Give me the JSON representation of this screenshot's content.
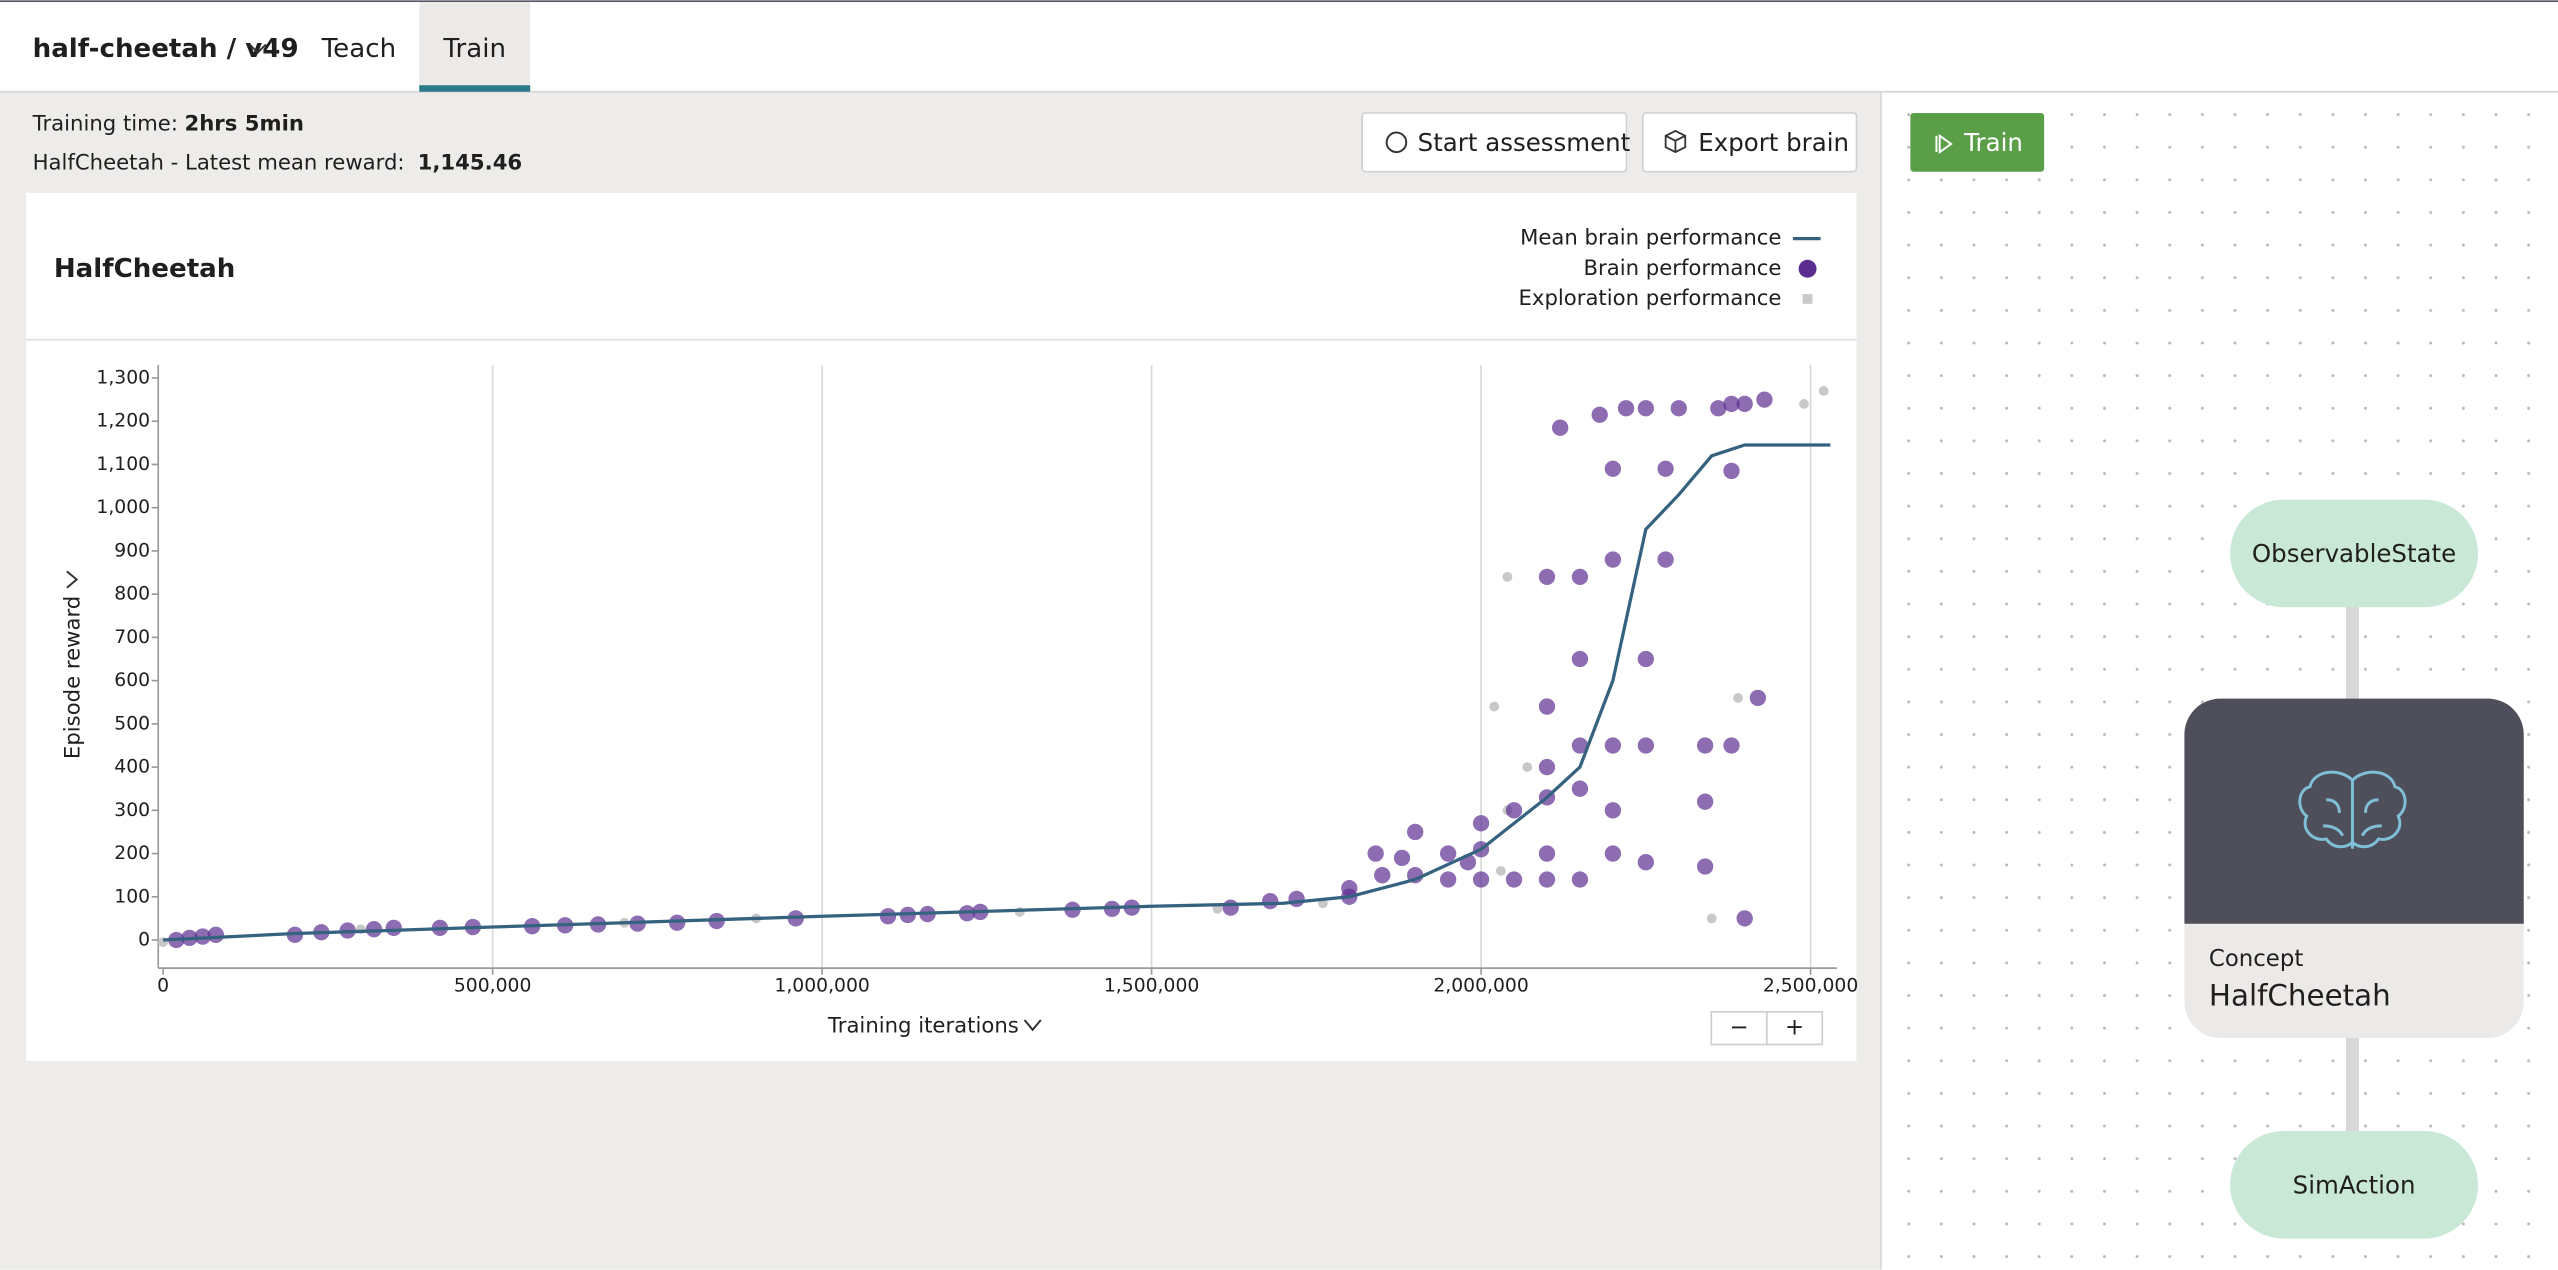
{
  "header": {
    "project": "half-cheetah / v49",
    "tabs": [
      {
        "label": "Teach"
      },
      {
        "label": "Train",
        "active": true
      }
    ]
  },
  "status": {
    "training_time_label": "Training time:",
    "training_time": "2hrs 5min",
    "reward_label": "HalfCheetah - Latest mean reward:",
    "reward": "1,145.46"
  },
  "buttons": [
    "Start assessment",
    "Export brain"
  ],
  "zoom_controls": [
    "−",
    "+"
  ],
  "chart_data": {
    "type": "scatter",
    "title": "HalfCheetah",
    "xlabel": "Training iterations",
    "ylabel": "Episode reward",
    "xlim": [
      0,
      2540000
    ],
    "ylim": [
      -65,
      1330
    ],
    "xticks": [
      0,
      {
        "value": 500000,
        "label": "500,000"
      },
      {
        "value": 1000000,
        "label": "1,000,000"
      },
      {
        "value": 1500000,
        "label": "1,500,000"
      },
      {
        "value": 2000000,
        "label": "2,000,000"
      },
      {
        "value": 2500000,
        "label": "2,500,000"
      }
    ],
    "yticks": [
      0,
      100,
      200,
      300,
      400,
      500,
      600,
      700,
      800,
      900,
      {
        "value": 1000,
        "label": "1,000"
      },
      {
        "value": 1100,
        "label": "1,100"
      },
      {
        "value": 1200,
        "label": "1,200"
      },
      {
        "value": 1300,
        "label": "1,300"
      }
    ],
    "grid": true,
    "legend": "top-right",
    "series": [
      {
        "name": "Mean brain performance",
        "type": "line",
        "color": "#35627f",
        "x": [
          0,
          200000,
          500000,
          1000000,
          1500000,
          1700000,
          1800000,
          1900000,
          2000000,
          2100000,
          2150000,
          2200000,
          2250000,
          2300000,
          2350000,
          2400000,
          2530000
        ],
        "values": [
          0,
          15,
          30,
          55,
          78,
          85,
          100,
          140,
          210,
          330,
          400,
          600,
          950,
          1030,
          1120,
          1145,
          1145
        ]
      },
      {
        "name": "Brain performance",
        "type": "scatter",
        "color": "#5c2d91",
        "x": [
          20000,
          40000,
          60000,
          80000,
          200000,
          240000,
          280000,
          320000,
          350000,
          420000,
          470000,
          560000,
          610000,
          660000,
          720000,
          780000,
          840000,
          960000,
          1100000,
          1130000,
          1160000,
          1220000,
          1240000,
          1380000,
          1440000,
          1470000,
          1620000,
          1680000,
          1720000,
          1800000,
          1800000,
          1840000,
          1850000,
          1880000,
          1900000,
          1900000,
          1950000,
          1950000,
          1980000,
          2000000,
          2000000,
          2000000,
          2050000,
          2050000,
          2100000,
          2100000,
          2100000,
          2100000,
          2100000,
          2100000,
          2120000,
          2150000,
          2150000,
          2150000,
          2150000,
          2150000,
          2180000,
          2200000,
          2200000,
          2200000,
          2200000,
          2200000,
          2220000,
          2250000,
          2250000,
          2250000,
          2250000,
          2280000,
          2280000,
          2300000,
          2340000,
          2340000,
          2340000,
          2360000,
          2380000,
          2380000,
          2380000,
          2400000,
          2400000,
          2420000,
          2430000
        ],
        "values": [
          0,
          5,
          8,
          12,
          12,
          18,
          22,
          25,
          28,
          28,
          30,
          32,
          34,
          36,
          38,
          40,
          44,
          50,
          55,
          58,
          60,
          62,
          65,
          70,
          72,
          75,
          75,
          90,
          95,
          100,
          120,
          200,
          150,
          190,
          150,
          250,
          140,
          200,
          180,
          140,
          210,
          270,
          140,
          300,
          140,
          200,
          330,
          400,
          540,
          840,
          1185,
          140,
          350,
          450,
          650,
          840,
          1215,
          200,
          300,
          450,
          880,
          1090,
          1230,
          180,
          450,
          650,
          1230,
          880,
          1090,
          1230,
          170,
          320,
          450,
          1230,
          450,
          1085,
          1240,
          1240,
          50,
          560,
          1250
        ]
      },
      {
        "name": "Exploration performance",
        "type": "scatter",
        "color": "#c8c8c8",
        "x": [
          0,
          300000,
          700000,
          900000,
          1300000,
          1600000,
          1760000,
          2020000,
          2030000,
          2040000,
          2040000,
          2070000,
          2350000,
          2390000,
          2490000,
          2520000
        ],
        "values": [
          -5,
          25,
          40,
          50,
          65,
          72,
          85,
          540,
          160,
          840,
          300,
          400,
          50,
          560,
          1240,
          1270
        ]
      }
    ]
  },
  "graph": {
    "train_button": "Train",
    "nodes": [
      {
        "label": "ObservableState"
      },
      {
        "kind": "Concept",
        "label": "HalfCheetah"
      },
      {
        "label": "SimAction"
      }
    ]
  }
}
